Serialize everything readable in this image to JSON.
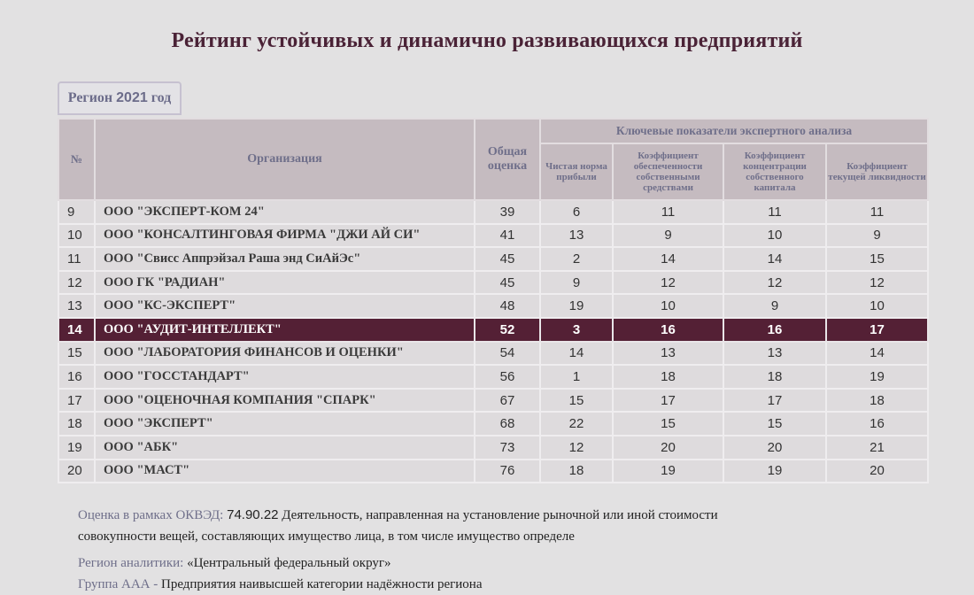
{
  "title": "Рейтинг устойчивых и динамично развивающихся предприятий",
  "region_tab": {
    "label": "Регион",
    "year": "2021",
    "suffix": "год"
  },
  "table": {
    "headers": {
      "num": "№",
      "org": "Организация",
      "total": "Общая оценка",
      "group": "Ключевые показатели экспертного анализа",
      "net_profit": "Чистая норма прибыли",
      "equity_ratio": "Коэффициент обеспеченности собственными средствами",
      "concentration": "Коэффициент концентрации собственного капитала",
      "liquidity": "Коэффициент текущей ликвидности"
    },
    "rows": [
      {
        "num": "9",
        "org": "ООО \"ЭКСПЕРТ-КОМ 24\"",
        "total": "39",
        "profit": "6",
        "equity": "11",
        "conc": "11",
        "liq": "11"
      },
      {
        "num": "10",
        "org": "ООО \"КОНСАЛТИНГОВАЯ ФИРМА \"ДЖИ АЙ СИ\"",
        "total": "41",
        "profit": "13",
        "equity": "9",
        "conc": "10",
        "liq": "9"
      },
      {
        "num": "11",
        "org": "ООО \"Свисс Аппрэйзал Раша энд СиАйЭс\"",
        "total": "45",
        "profit": "2",
        "equity": "14",
        "conc": "14",
        "liq": "15"
      },
      {
        "num": "12",
        "org": "ООО ГК \"РАДИАН\"",
        "total": "45",
        "profit": "9",
        "equity": "12",
        "conc": "12",
        "liq": "12"
      },
      {
        "num": "13",
        "org": "ООО \"КС-ЭКСПЕРТ\"",
        "total": "48",
        "profit": "19",
        "equity": "10",
        "conc": "9",
        "liq": "10"
      },
      {
        "num": "14",
        "org": "ООО \"АУДИТ-ИНТЕЛЛЕКТ\"",
        "total": "52",
        "profit": "3",
        "equity": "16",
        "conc": "16",
        "liq": "17",
        "highlight": true
      },
      {
        "num": "15",
        "org": "ООО \"ЛАБОРАТОРИЯ ФИНАНСОВ И ОЦЕНКИ\"",
        "total": "54",
        "profit": "14",
        "equity": "13",
        "conc": "13",
        "liq": "14"
      },
      {
        "num": "16",
        "org": "ООО \"ГОССТАНДАРТ\"",
        "total": "56",
        "profit": "1",
        "equity": "18",
        "conc": "18",
        "liq": "19"
      },
      {
        "num": "17",
        "org": "ООО \"ОЦЕНОЧНАЯ КОМПАНИЯ \"СПАРК\"",
        "total": "67",
        "profit": "15",
        "equity": "17",
        "conc": "17",
        "liq": "18"
      },
      {
        "num": "18",
        "org": "ООО \"ЭКСПЕРТ\"",
        "total": "68",
        "profit": "22",
        "equity": "15",
        "conc": "15",
        "liq": "16"
      },
      {
        "num": "19",
        "org": "ООО \"АБК\"",
        "total": "73",
        "profit": "12",
        "equity": "20",
        "conc": "20",
        "liq": "21"
      },
      {
        "num": "20",
        "org": "ООО \"МАСТ\"",
        "total": "76",
        "profit": "18",
        "equity": "19",
        "conc": "19",
        "liq": "20"
      }
    ]
  },
  "notes": {
    "okved_label": "Оценка в рамках ОКВЭД:",
    "okved_code": "74.90.22",
    "okved_text": "Деятельность, направленная на установление рыночной или иной стоимости совокупности вещей, составляющих имущество лица, в том числе имущество определе",
    "region_label": "Регион аналитики:",
    "region_value": "«Центральный федеральный округ»",
    "group_label": "Группа ААА -",
    "group_value": "Предприятия наивысшей категории надёжности региона"
  }
}
